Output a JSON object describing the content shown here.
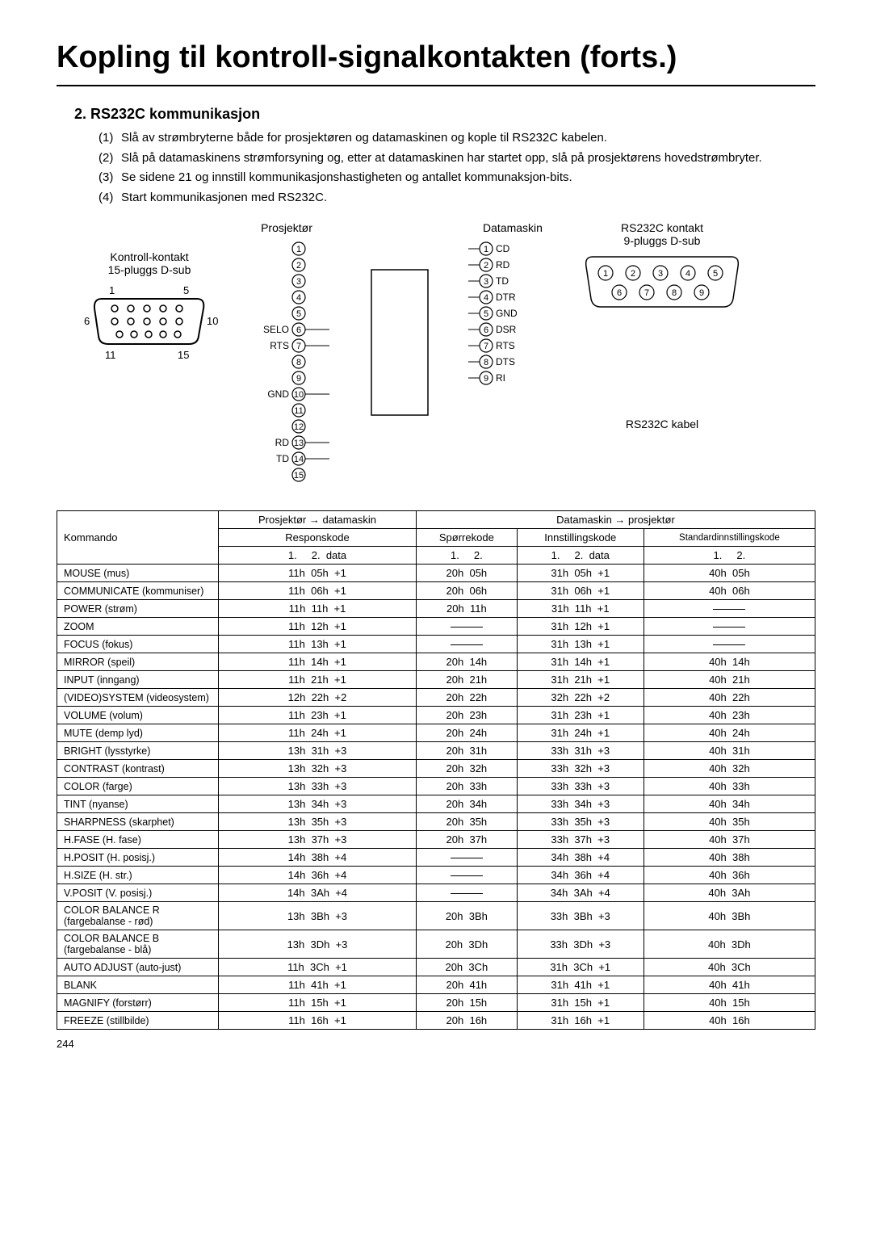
{
  "title": "Kopling  til kontroll-signalkontakten (forts.)",
  "section_num_title": "2.  RS232C kommunikasjon",
  "steps": [
    {
      "n": "(1)",
      "t": "Slå av strømbryterne både for prosjektøren og datamaskinen og kople til RS232C kabelen."
    },
    {
      "n": "(2)",
      "t": "Slå på datamaskinens strømforsyning og, etter at datamaskinen har startet opp, slå på prosjektørens hovedstrømbryter."
    },
    {
      "n": "(3)",
      "t": "Se sidene 21 og innstill kommunikasjonshastigheten og antallet kommunaksjon-bits."
    },
    {
      "n": "(4)",
      "t": "Start kommunikasjonen med RS232C."
    }
  ],
  "diag": {
    "kontroll_title1": "Kontroll-kontakt",
    "kontroll_title2": "15-pluggs D-sub",
    "label_1": "1",
    "label_5": "5",
    "label_6": "6",
    "label_10": "10",
    "label_11": "11",
    "label_15": "15",
    "prosj": "Prosjektør",
    "datam": "Datamaskin",
    "prosj_pins": [
      "",
      "",
      "",
      "",
      "",
      "SELO",
      "RTS",
      "",
      "",
      "GND",
      "",
      "",
      "RD",
      "TD",
      ""
    ],
    "datam_pins": [
      "CD",
      "RD",
      "TD",
      "DTR",
      "GND",
      "DSR",
      "RTS",
      "DTS",
      "RI"
    ],
    "rs232c_title1": "RS232C kontakt",
    "rs232c_title2": "9-pluggs D-sub",
    "rs232c_kabel": "RS232C  kabel"
  },
  "table": {
    "head_a": "Prosjektør → datamaskin",
    "head_b": "Datamaskin → prosjektør",
    "head_kom": "Kommando",
    "head_resp": "Responskode",
    "head_spor": "Spørrekode",
    "head_inn": "Innstillingskode",
    "head_std": "Standardinnstillingskode",
    "sub1": "1.",
    "sub2": "2.",
    "subdata": "data",
    "rows": [
      {
        "k": "MOUSE (mus)",
        "a": "11h  05h  +1",
        "b": "20h  05h",
        "c": "31h  05h  +1",
        "d": "40h  05h"
      },
      {
        "k": "COMMUNICATE (kommuniser)",
        "a": "11h  06h  +1",
        "b": "20h  06h",
        "c": "31h  06h  +1",
        "d": "40h  06h",
        "ksmall": true
      },
      {
        "k": "POWER (strøm)",
        "a": "11h  11h  +1",
        "b": "20h  11h",
        "c": "31h  11h  +1",
        "d": "—"
      },
      {
        "k": "ZOOM",
        "a": "11h  12h  +1",
        "b": "—",
        "c": "31h  12h  +1",
        "d": "—"
      },
      {
        "k": "FOCUS (fokus)",
        "a": "11h  13h  +1",
        "b": "—",
        "c": "31h  13h  +1",
        "d": "—"
      },
      {
        "k": "MIRROR (speil)",
        "a": "11h  14h  +1",
        "b": "20h  14h",
        "c": "31h  14h  +1",
        "d": "40h  14h"
      },
      {
        "k": "INPUT (inngang)",
        "a": "11h  21h  +1",
        "b": "20h  21h",
        "c": "31h  21h  +1",
        "d": "40h  21h"
      },
      {
        "k": "(VIDEO)SYSTEM (videosystem)",
        "a": "12h  22h  +2",
        "b": "20h  22h",
        "c": "32h  22h  +2",
        "d": "40h  22h",
        "ksmall": true
      },
      {
        "k": "VOLUME (volum)",
        "a": "11h  23h  +1",
        "b": "20h  23h",
        "c": "31h  23h  +1",
        "d": "40h  23h"
      },
      {
        "k": "MUTE (demp lyd)",
        "a": "11h  24h  +1",
        "b": "20h  24h",
        "c": "31h  24h  +1",
        "d": "40h  24h"
      },
      {
        "k": "BRIGHT (lysstyrke)",
        "a": "13h  31h  +3",
        "b": "20h  31h",
        "c": "33h  31h  +3",
        "d": "40h  31h"
      },
      {
        "k": "CONTRAST (kontrast)",
        "a": "13h  32h  +3",
        "b": "20h  32h",
        "c": "33h  32h  +3",
        "d": "40h  32h"
      },
      {
        "k": "COLOR (farge)",
        "a": "13h  33h  +3",
        "b": "20h  33h",
        "c": "33h  33h  +3",
        "d": "40h  33h"
      },
      {
        "k": "TINT (nyanse)",
        "a": "13h  34h  +3",
        "b": "20h  34h",
        "c": "33h  34h  +3",
        "d": "40h  34h"
      },
      {
        "k": "SHARPNESS (skarphet)",
        "a": "13h  35h  +3",
        "b": "20h  35h",
        "c": "33h  35h  +3",
        "d": "40h  35h"
      },
      {
        "k": "H.FASE (H. fase)",
        "a": "13h  37h  +3",
        "b": "20h  37h",
        "c": "33h  37h  +3",
        "d": "40h  37h"
      },
      {
        "k": "H.POSIT (H. posisj.)",
        "a": "14h  38h  +4",
        "b": "—",
        "c": "34h  38h  +4",
        "d": "40h  38h"
      },
      {
        "k": "H.SIZE (H. str.)",
        "a": "14h  36h  +4",
        "b": "—",
        "c": "34h  36h  +4",
        "d": "40h  36h"
      },
      {
        "k": "V.POSIT (V. posisj.)",
        "a": "14h  3Ah  +4",
        "b": "—",
        "c": "34h  3Ah  +4",
        "d": "40h  3Ah"
      },
      {
        "k": "COLOR BALANCE R (fargebalanse - rød)",
        "a": "13h  3Bh  +3",
        "b": "20h  3Bh",
        "c": "33h  3Bh  +3",
        "d": "40h  3Bh"
      },
      {
        "k": "COLOR BALANCE B (fargebalanse - blå)",
        "a": "13h  3Dh  +3",
        "b": "20h  3Dh",
        "c": "33h  3Dh  +3",
        "d": "40h  3Dh"
      },
      {
        "k": "AUTO ADJUST (auto-just)",
        "a": "11h  3Ch  +1",
        "b": "20h  3Ch",
        "c": "31h  3Ch  +1",
        "d": "40h  3Ch",
        "ksmall": true
      },
      {
        "k": "BLANK",
        "a": "11h  41h  +1",
        "b": "20h  41h",
        "c": "31h  41h  +1",
        "d": "40h  41h"
      },
      {
        "k": "MAGNIFY (forstørr)",
        "a": "11h  15h  +1",
        "b": "20h  15h",
        "c": "31h  15h  +1",
        "d": "40h  15h"
      },
      {
        "k": "FREEZE (stillbilde)",
        "a": "11h  16h  +1",
        "b": "20h  16h",
        "c": "31h  16h  +1",
        "d": "40h  16h"
      }
    ]
  },
  "page_foot": "244"
}
